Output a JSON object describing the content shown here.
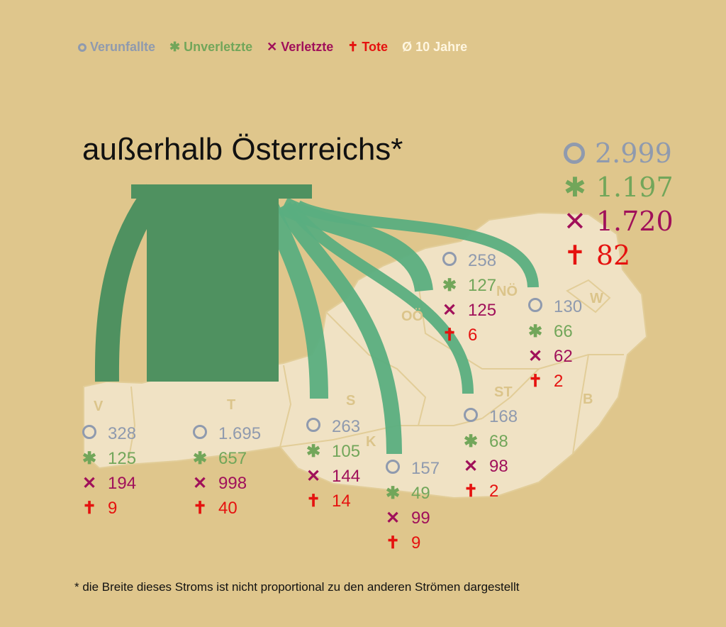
{
  "legend": [
    {
      "icon": "circle-icon",
      "glyph": "",
      "label": "Verunfallte",
      "color": "#8f9aae"
    },
    {
      "icon": "asterisk-icon",
      "glyph": "✱",
      "label": "Unverletzte",
      "color": "#72a65a"
    },
    {
      "icon": "cross-icon",
      "glyph": "✕",
      "label": "Verletzte",
      "color": "#a0105a"
    },
    {
      "icon": "dagger-icon",
      "glyph": "✝",
      "label": "Tote",
      "color": "#e5120f"
    },
    {
      "icon": "average-icon",
      "glyph": "Ø",
      "label": "10 Jahre",
      "color": "#fff6e0"
    }
  ],
  "title": "außerhalb Österreichs*",
  "total": {
    "verunfallte": "2.999",
    "unverletzte": "1.197",
    "verletzte": "1.720",
    "tote": "82"
  },
  "regions": [
    {
      "code": "V",
      "verunfallte": "328",
      "unverletzte": "125",
      "verletzte": "194",
      "tote": "9"
    },
    {
      "code": "T",
      "verunfallte": "1.695",
      "unverletzte": "657",
      "verletzte": "998",
      "tote": "40"
    },
    {
      "code": "S",
      "verunfallte": "263",
      "unverletzte": "105",
      "verletzte": "144",
      "tote": "14"
    },
    {
      "code": "K",
      "verunfallte": "157",
      "unverletzte": "49",
      "verletzte": "99",
      "tote": "9"
    },
    {
      "code": "ST",
      "verunfallte": "168",
      "unverletzte": "68",
      "verletzte": "98",
      "tote": "2"
    },
    {
      "code": "OÖ",
      "verunfallte": "258",
      "unverletzte": "127",
      "verletzte": "125",
      "tote": "6"
    },
    {
      "code": "NÖ",
      "verunfallte": "130",
      "unverletzte": "66",
      "verletzte": "62",
      "tote": "2"
    },
    {
      "code": "W"
    },
    {
      "code": "B"
    }
  ],
  "footnote": "* die Breite dieses Stroms ist nicht proportional zu den anderen Strömen dargestellt",
  "colors": {
    "background": "#dfc68c",
    "map": "#f0e2c4",
    "flow_main": "#4f9160",
    "flow": "#5aae80"
  }
}
